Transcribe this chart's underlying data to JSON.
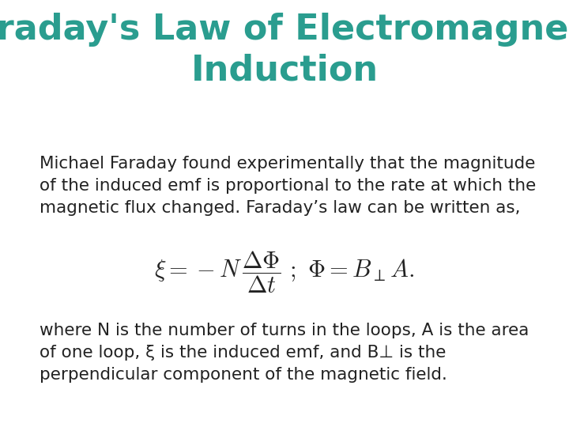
{
  "title_line1": "Faraday's Law of Electromagnetic",
  "title_line2": "Induction",
  "title_color": "#2A9D8F",
  "title_fontsize": 32,
  "title_fontstyle": "bold",
  "body_text_line1": "Michael Faraday found experimentally that the magnitude",
  "body_text_line2": "of the induced emf is proportional to the rate at which the",
  "body_text_line3": "magnetic flux changed. Faraday’s law can be written as,",
  "body_fontsize": 15.5,
  "body_color": "#222222",
  "equation_fontsize": 22,
  "footer_text_line1": "where N is the number of turns in the loops, A is the area",
  "footer_text_line2": "of one loop, ξ is the induced emf, and B⊥ is the",
  "footer_text_line3": "perpendicular component of the magnetic field.",
  "footer_fontsize": 15.5,
  "footer_color": "#222222",
  "background_color": "#ffffff"
}
